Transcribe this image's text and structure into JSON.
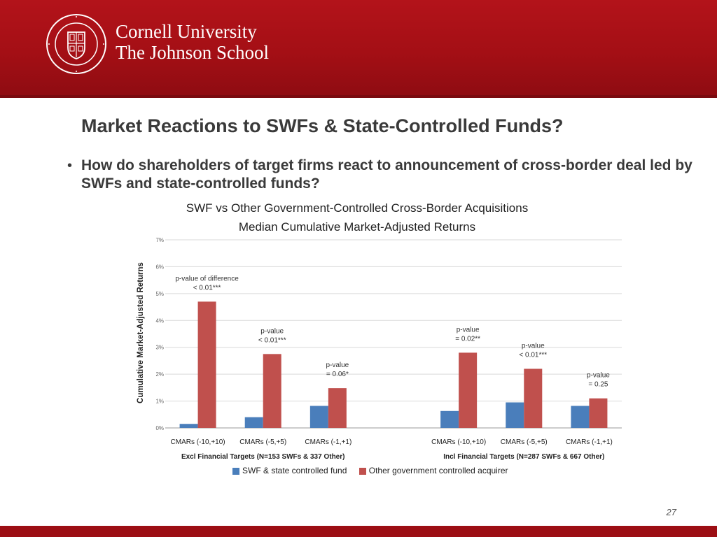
{
  "header": {
    "university": "Cornell University",
    "school": "The Johnson School",
    "seal_text": "CORNELL UNIVERSITY FOUNDED A.D. 1865",
    "color": "#b3131a"
  },
  "slide": {
    "title": "Market Reactions to SWFs & State-Controlled Funds?",
    "bullet": "How do shareholders of target firms react to announcement of cross-border deal led by SWFs and state-controlled funds?",
    "page_number": "27"
  },
  "chart_data": {
    "type": "bar",
    "title_line1": "SWF vs Other Government-Controlled Cross-Border Acquisitions",
    "title_line2": "Median Cumulative Market-Adjusted Returns",
    "ylabel": "Cumulative Market-Adjusted Returns",
    "ylim": [
      0,
      7
    ],
    "yticks": [
      "0%",
      "1%",
      "2%",
      "3%",
      "4%",
      "5%",
      "6%",
      "7%"
    ],
    "grid": true,
    "legend_position": "bottom",
    "categories": [
      "CMARs (-10,+10)",
      "CMARs (-5,+5)",
      "CMARs (-1,+1)",
      "CMARs (-10,+10)",
      "CMARs (-5,+5)",
      "CMARs (-1,+1)"
    ],
    "groups": [
      {
        "label": "Excl Financial Targets (N=153 SWFs & 337 Other)",
        "categories": [
          0,
          1,
          2
        ]
      },
      {
        "label": "Incl Financial Targets (N=287 SWFs & 667 Other)",
        "categories": [
          3,
          4,
          5
        ]
      }
    ],
    "series": [
      {
        "name": "SWF & state controlled fund",
        "color": "#4a7ebb",
        "values": [
          0.15,
          0.4,
          0.82,
          0.63,
          0.95,
          0.82
        ]
      },
      {
        "name": "Other government controlled acquirer",
        "color": "#c0504d",
        "values": [
          4.7,
          2.75,
          1.48,
          2.8,
          2.2,
          1.1
        ]
      }
    ],
    "annotations": [
      {
        "category": 0,
        "line1": "p-value of difference",
        "line2": "< 0.01***"
      },
      {
        "category": 1,
        "line1": "p-value",
        "line2": "< 0.01***"
      },
      {
        "category": 2,
        "line1": "p-value",
        "line2": "= 0.06*"
      },
      {
        "category": 3,
        "line1": "p-value",
        "line2": "= 0.02**"
      },
      {
        "category": 4,
        "line1": "p-value",
        "line2": "< 0.01***"
      },
      {
        "category": 5,
        "line1": "p-value",
        "line2": "= 0.25"
      }
    ]
  },
  "footer": {
    "color": "#9c0e14"
  }
}
